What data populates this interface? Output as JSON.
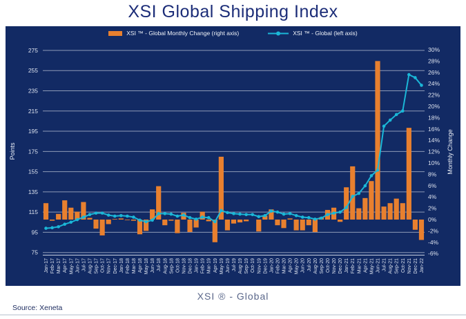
{
  "title": "XSI Global Shipping Index",
  "footer": {
    "axis_caption": "XSI ® - Global",
    "source": "Source: Xeneta"
  },
  "legend": [
    {
      "label": "XSI ™ - Global Monthly Change (right axis)",
      "marker": "bar-swatch"
    },
    {
      "label": "XSI ™ - Global (left axis)",
      "marker": "line-dot-marker"
    }
  ],
  "colors": {
    "panel_bg": "#122a64",
    "bar": "#e8802f",
    "line": "#1bb7d7",
    "grid": "#aeb8cc",
    "axis_text": "#dce2ee",
    "title": "#1c2d78",
    "caption": "#5a678a",
    "source": "#1b2a5e"
  },
  "chart_data": {
    "type": "bar",
    "subtype": "bar+line combo, dual axis",
    "grid": "horizontal gridlines on",
    "legend_position": "top-center",
    "categories": [
      "Jan-17",
      "Feb-17",
      "Mar-17",
      "Apr-17",
      "May-17",
      "Jun-17",
      "Jul-17",
      "Aug-17",
      "Sep-17",
      "Oct-17",
      "Nov-17",
      "Dec-17",
      "Jan-18",
      "Feb-18",
      "Mar-18",
      "Apr-18",
      "May-18",
      "Jun-18",
      "Jul-18",
      "Aug-18",
      "Sep-18",
      "Oct-18",
      "Nov-18",
      "Dec-18",
      "Jan-19",
      "Feb-19",
      "Mar-19",
      "Apr-19",
      "May-19",
      "Jun-19",
      "Jul-19",
      "Aug-19",
      "Sep-19",
      "Oct-19",
      "Nov-19",
      "Dec-19",
      "Jan-20",
      "Feb-20",
      "Mar-20",
      "Apr-20",
      "May-20",
      "Jun-20",
      "Jul-20",
      "Aug-20",
      "Sep-20",
      "Oct-20",
      "Nov-20",
      "Dec-20",
      "Jan-21",
      "Feb-21",
      "Mar-21",
      "Apr-21",
      "May-21",
      "Jun-21",
      "Jul-21",
      "Aug-21",
      "Sep-21",
      "Oct-21",
      "Nov-21",
      "Dec-21",
      "Jan-22"
    ],
    "series": [
      {
        "name": "XSI ™ - Global Monthly Change (right axis)",
        "type": "bar",
        "axis": "right",
        "unit": "%",
        "values": [
          2.9,
          -0.2,
          1.0,
          3.4,
          2.1,
          1.4,
          3.1,
          0.3,
          -1.6,
          -2.8,
          -0.8,
          0.1,
          0.2,
          -0.1,
          -0.2,
          -2.6,
          -2.0,
          1.8,
          5.9,
          -1.0,
          -0.2,
          -2.4,
          1.2,
          -2.2,
          -1.4,
          1.4,
          -0.3,
          -4.0,
          11.1,
          -1.9,
          -0.7,
          -0.5,
          -0.3,
          0.0,
          -2.1,
          0.7,
          1.8,
          -1.0,
          -1.5,
          0.2,
          -1.9,
          -1.9,
          -1.0,
          -2.2,
          0.4,
          1.7,
          2.1,
          -0.4,
          5.7,
          9.4,
          2.0,
          3.8,
          6.8,
          28.0,
          2.3,
          2.9,
          3.7,
          2.9,
          16.2,
          -1.8,
          -3.6
        ]
      },
      {
        "name": "XSI ™ - Global (left axis)",
        "type": "line",
        "axis": "left",
        "unit": "points",
        "values": [
          99,
          99.5,
          100.5,
          103,
          105,
          107.5,
          110,
          112.5,
          114,
          114,
          112,
          111,
          111.5,
          111,
          110,
          107,
          105.5,
          107,
          113.5,
          113.5,
          113,
          111,
          112,
          109.5,
          108,
          110,
          109.5,
          105.5,
          116.5,
          114.5,
          113.5,
          113,
          112.5,
          112.5,
          110.5,
          111.5,
          116,
          115,
          113,
          113.5,
          111.5,
          110,
          109.5,
          108,
          109,
          112.5,
          114,
          115,
          119.5,
          130.5,
          133.5,
          141,
          151,
          156.5,
          200,
          206,
          211.5,
          215,
          251,
          248,
          240.5
        ]
      }
    ],
    "left_axis": {
      "label": "Points",
      "min": 75,
      "max": 275,
      "tick_step": 20
    },
    "right_axis": {
      "label": "Monthly Change",
      "min": -6,
      "max": 30,
      "tick_step": 2,
      "format": "percent"
    }
  }
}
